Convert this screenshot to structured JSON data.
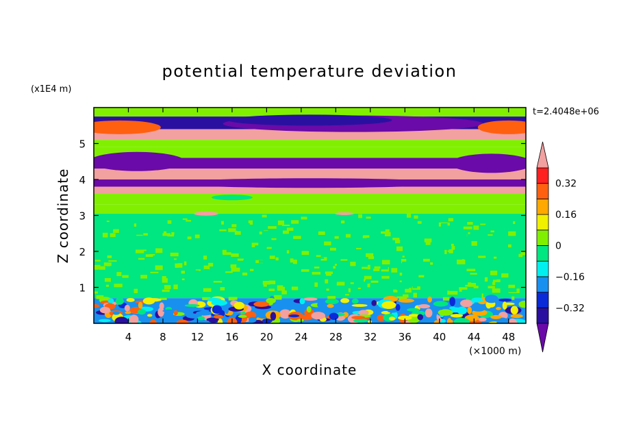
{
  "chart_data": {
    "type": "heatmap",
    "title": "potential temperature deviation",
    "xlabel": "X coordinate",
    "ylabel": "Z coordinate",
    "x_unit_label": "(×1000 m)",
    "y_unit_label": "(x1E4 m)",
    "time_label": "t=2.4048e+06",
    "xlim": [
      0,
      50
    ],
    "ylim": [
      0,
      6
    ],
    "x_ticks": [
      4,
      8,
      12,
      16,
      20,
      24,
      28,
      32,
      36,
      40,
      44,
      48
    ],
    "y_ticks": [
      1,
      2,
      3,
      4,
      5
    ],
    "colorbar": {
      "levels": [
        -0.4,
        -0.32,
        -0.24,
        -0.16,
        -0.08,
        0,
        0.08,
        0.16,
        0.24,
        0.32,
        0.4
      ],
      "labels": [
        {
          "value": -0.32,
          "text": "−0.32"
        },
        {
          "value": -0.16,
          "text": "−0.16"
        },
        {
          "value": 0,
          "text": "0"
        },
        {
          "value": 0.16,
          "text": "0.16"
        },
        {
          "value": 0.32,
          "text": "0.32"
        }
      ],
      "colors": [
        "#6a0aa8",
        "#2a10a0",
        "#0a2ad8",
        "#1890f0",
        "#00f0f0",
        "#00e680",
        "#80f000",
        "#f0f000",
        "#ffa800",
        "#ff6010",
        "#ff2020",
        "#f2a0a0"
      ]
    },
    "bands": [
      {
        "z": [
          5.75,
          6.0
        ],
        "value": 0.03
      },
      {
        "z": [
          5.4,
          5.75
        ],
        "value": -0.35
      },
      {
        "z": [
          5.1,
          5.4
        ],
        "value": 0.45
      },
      {
        "z": [
          4.9,
          5.1
        ],
        "value": 0.05
      },
      {
        "z": [
          4.6,
          4.9
        ],
        "value": 0.03
      },
      {
        "z": [
          4.3,
          4.6
        ],
        "value": -0.45
      },
      {
        "z": [
          4.0,
          4.3
        ],
        "value": 0.45
      },
      {
        "z": [
          3.8,
          4.0
        ],
        "value": -0.42
      },
      {
        "z": [
          3.6,
          3.8
        ],
        "value": 0.45
      },
      {
        "z": [
          3.3,
          3.6
        ],
        "value": 0.02
      },
      {
        "z": [
          3.05,
          3.3
        ],
        "value": 0.03
      },
      {
        "z": [
          0.7,
          3.05
        ],
        "value": -0.02
      },
      {
        "z": [
          0.0,
          0.7
        ],
        "value": -0.2
      }
    ]
  }
}
